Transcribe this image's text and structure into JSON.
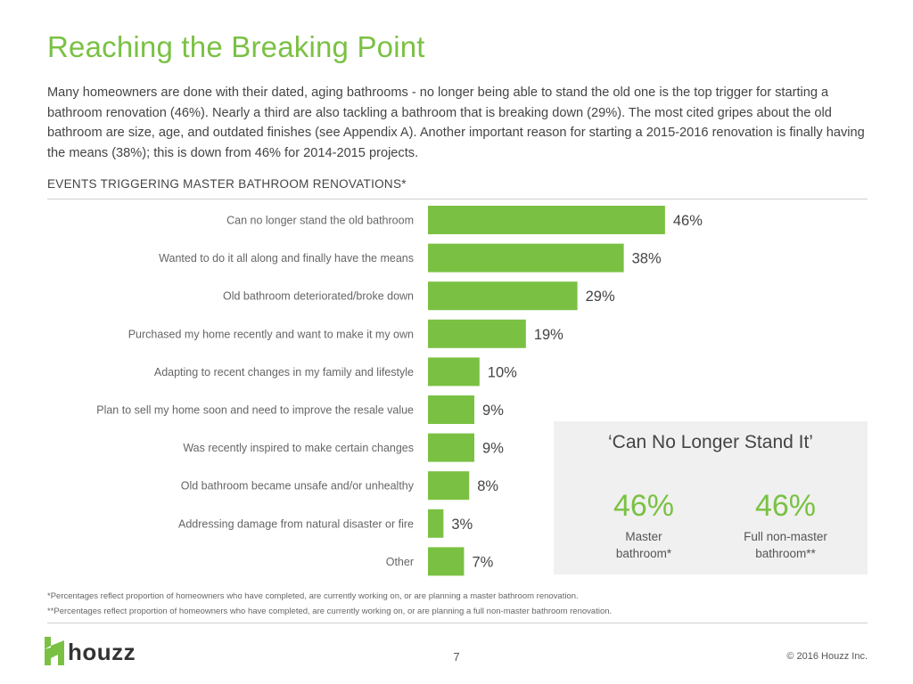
{
  "page": {
    "title": "Reaching the Breaking Point",
    "intro": "Many homeowners are done with their dated, aging bathrooms - no longer being able to stand the old one is the top trigger for starting a bathroom renovation (46%). Nearly a third are also tackling a bathroom that is breaking down (29%). The most cited gripes about the old bathroom are size, age, and outdated finishes (see Appendix A). Another important reason for starting a 2015-2016 renovation is finally having the means (38%); this is down from 46% for 2014-2015 projects.",
    "chart_heading": "EVENTS TRIGGERING MASTER BATHROOM RENOVATIONS*"
  },
  "chart_data": {
    "type": "bar",
    "orientation": "horizontal",
    "categories": [
      "Can no longer stand the old bathroom",
      "Wanted to do it all along and finally have the means",
      "Old bathroom deteriorated/broke down",
      "Purchased my home recently and want to make it my own",
      "Adapting to recent changes in my family and lifestyle",
      "Plan to sell my home soon and need to improve the resale value",
      "Was recently inspired to make certain changes",
      "Old bathroom became unsafe and/or unhealthy",
      "Addressing damage from natural disaster or fire",
      "Other"
    ],
    "values": [
      46,
      38,
      29,
      19,
      10,
      9,
      9,
      8,
      3,
      7
    ],
    "value_labels": [
      "46%",
      "38%",
      "29%",
      "19%",
      "10%",
      "9%",
      "9%",
      "8%",
      "3%",
      "7%"
    ],
    "unit": "%",
    "bar_color": "#7ac143",
    "grid": false
  },
  "callout": {
    "title": "‘Can No Longer Stand It’",
    "stats": [
      {
        "value": "46%",
        "label_line1": "Master",
        "label_line2": "bathroom*"
      },
      {
        "value": "46%",
        "label_line1": "Full non-master",
        "label_line2": "bathroom**"
      }
    ]
  },
  "footnotes": [
    "*Percentages reflect proportion of homeowners who have completed, are currently working on, or are planning a master bathroom renovation.",
    "**Percentages reflect proportion of homeowners who have completed, are currently working on, or are planning a full non-master bathroom renovation."
  ],
  "footer": {
    "logo_text": "houzz",
    "logo_icon": "houzz-logo-icon",
    "page_number": "7",
    "copyright": "© 2016 Houzz Inc."
  },
  "colors": {
    "accent": "#7ac143",
    "text": "#444444",
    "callout_bg": "#f0f0f0"
  }
}
